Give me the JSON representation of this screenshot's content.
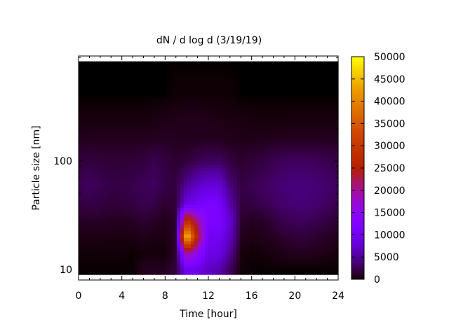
{
  "chart_data": {
    "type": "heatmap",
    "title": "dN / d log d (3/19/19)",
    "xlabel": "Time [hour]",
    "ylabel": "Particle size [nm]",
    "xlim": [
      0,
      24
    ],
    "ylim": [
      8,
      930
    ],
    "yscale": "log",
    "data_ylim": [
      9,
      830
    ],
    "x_ticks": [
      0,
      4,
      8,
      12,
      16,
      20,
      24
    ],
    "x_tick_labels": [
      "0",
      "4",
      "8",
      "12",
      "16",
      "20",
      "24"
    ],
    "y_ticks": [
      10,
      100
    ],
    "y_tick_labels": [
      "10",
      "100"
    ],
    "colorbar": {
      "range": [
        0,
        50000
      ],
      "ticks": [
        0,
        5000,
        10000,
        15000,
        20000,
        25000,
        30000,
        35000,
        40000,
        45000,
        50000
      ],
      "tick_labels": [
        "0",
        "5000",
        "10000",
        "15000",
        "20000",
        "25000",
        "30000",
        "35000",
        "40000",
        "45000",
        "50000"
      ],
      "palette": "black-purple-red-yellow"
    },
    "grid": false,
    "times": [
      0,
      1,
      2,
      3,
      4,
      5,
      6,
      7,
      8,
      9,
      10,
      11,
      12,
      13,
      14,
      15,
      16,
      17,
      18,
      19,
      20,
      21,
      22,
      23,
      24
    ],
    "sizes": [
      10,
      14,
      20,
      28,
      40,
      60,
      100,
      160,
      250,
      400,
      830
    ],
    "values": [
      [
        50,
        50,
        50,
        50,
        50,
        50,
        1000,
        1000,
        1000,
        2000,
        10000,
        9000,
        7000,
        6000,
        3000,
        300,
        50,
        50,
        50,
        50,
        50,
        50,
        50,
        50,
        50
      ],
      [
        200,
        200,
        200,
        200,
        200,
        100,
        300,
        300,
        300,
        1500,
        20000,
        15000,
        9000,
        9000,
        5000,
        400,
        200,
        300,
        500,
        700,
        900,
        900,
        800,
        600,
        400
      ],
      [
        600,
        600,
        600,
        500,
        500,
        600,
        800,
        600,
        500,
        1500,
        48000,
        25000,
        10000,
        10000,
        7000,
        1000,
        600,
        800,
        1000,
        1500,
        1800,
        1800,
        1500,
        1200,
        900
      ],
      [
        1200,
        1200,
        1200,
        1000,
        1000,
        1200,
        1500,
        1200,
        800,
        1500,
        30000,
        20000,
        12000,
        12000,
        8000,
        1500,
        1000,
        1200,
        1800,
        2500,
        2800,
        2800,
        2500,
        2000,
        1500
      ],
      [
        2000,
        2200,
        2000,
        1800,
        1800,
        2000,
        2500,
        2200,
        1500,
        1800,
        9000,
        10000,
        12000,
        11000,
        6000,
        2000,
        2000,
        2500,
        3000,
        3500,
        3800,
        3800,
        3500,
        3000,
        2500
      ],
      [
        2500,
        3000,
        2600,
        2200,
        2200,
        2400,
        2800,
        3000,
        2200,
        2000,
        5000,
        7000,
        8000,
        8000,
        4000,
        2200,
        2500,
        3000,
        3500,
        3800,
        4000,
        4000,
        3800,
        3400,
        3000
      ],
      [
        1800,
        2000,
        1800,
        1700,
        1700,
        1800,
        2000,
        2500,
        2000,
        1500,
        1800,
        2500,
        3000,
        3000,
        2000,
        1500,
        1800,
        2000,
        2500,
        2800,
        3000,
        3000,
        2800,
        2500,
        2200
      ],
      [
        900,
        900,
        900,
        900,
        900,
        900,
        900,
        1000,
        1100,
        1000,
        900,
        900,
        1000,
        900,
        800,
        700,
        700,
        800,
        900,
        900,
        900,
        900,
        900,
        900,
        900
      ],
      [
        400,
        400,
        400,
        400,
        400,
        400,
        400,
        500,
        600,
        700,
        800,
        800,
        700,
        600,
        500,
        500,
        400,
        300,
        300,
        300,
        400,
        400,
        400,
        400,
        400
      ],
      [
        0,
        0,
        0,
        0,
        0,
        0,
        0,
        0,
        0,
        200,
        200,
        200,
        200,
        200,
        200,
        0,
        0,
        0,
        0,
        0,
        0,
        0,
        0,
        0,
        0
      ],
      [
        0,
        0,
        0,
        0,
        0,
        0,
        0,
        0,
        0,
        0,
        0,
        0,
        0,
        0,
        0,
        0,
        0,
        0,
        0,
        0,
        0,
        0,
        0,
        0,
        0
      ]
    ]
  }
}
